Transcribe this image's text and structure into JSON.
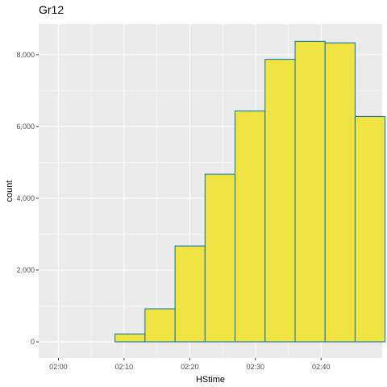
{
  "chart_data": {
    "type": "bar",
    "title": "Gr12",
    "xlabel": "HStime",
    "ylabel": "count",
    "x_ticks": [
      "02:00",
      "02:10",
      "02:20",
      "02:30",
      "02:40"
    ],
    "y_ticks": [
      "0",
      "2,000",
      "4,000",
      "6,000",
      "8,000"
    ],
    "y_tick_values": [
      0,
      2000,
      4000,
      6000,
      8000
    ],
    "ylim": [
      -450,
      8850
    ],
    "bin_width_minutes": 4.57,
    "first_bin_start_minutes": -0.52,
    "values": [
      0,
      0,
      220,
      920,
      2670,
      4670,
      6430,
      7870,
      8370,
      8330,
      6280
    ],
    "grid": true,
    "legend": "none",
    "colors": {
      "panel_background": "#ebebeb",
      "grid": "#ffffff",
      "bar_fill": "#f0e442",
      "bar_outline": "#0072b2"
    }
  }
}
